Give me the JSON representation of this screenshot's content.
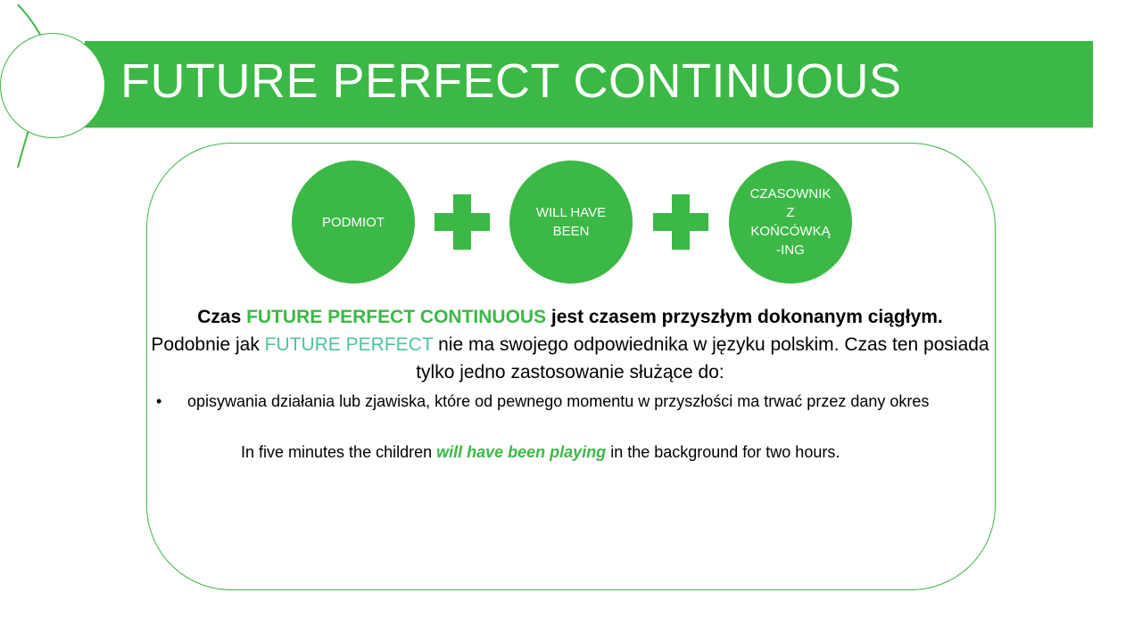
{
  "slide": {
    "title": "FUTURE PERFECT CONTINUOUS",
    "formula": {
      "parts": [
        "PODMIOT",
        "WILL HAVE\nBEEN",
        "CZASOWNIK\nZ\nKOŃCÓWKĄ\n-ING"
      ]
    },
    "intro": {
      "prefix": "Czas ",
      "tense": "FUTURE PERFECT CONTINUOUS",
      "suffix": " jest czasem przyszłym dokonanym ciągłym."
    },
    "note": {
      "prefix": "Podobnie jak ",
      "tense": "FUTURE PERFECT",
      "suffix": " nie ma swojego odpowiednika w języku polskim. Czas ten posiada tylko jedno zastosowanie służące do:"
    },
    "bullet": {
      "symbol": "•",
      "text": "opisywania działania lub zjawiska, które od pewnego momentu w przyszłości ma trwać przez dany okres"
    },
    "example": {
      "before": "In five minutes the children ",
      "highlight": "will have been playing",
      "after": " in the background for two hours."
    }
  },
  "colors": {
    "accent_green": "#3bb846",
    "accent_teal": "#4fc3a1",
    "text": "#000000"
  }
}
